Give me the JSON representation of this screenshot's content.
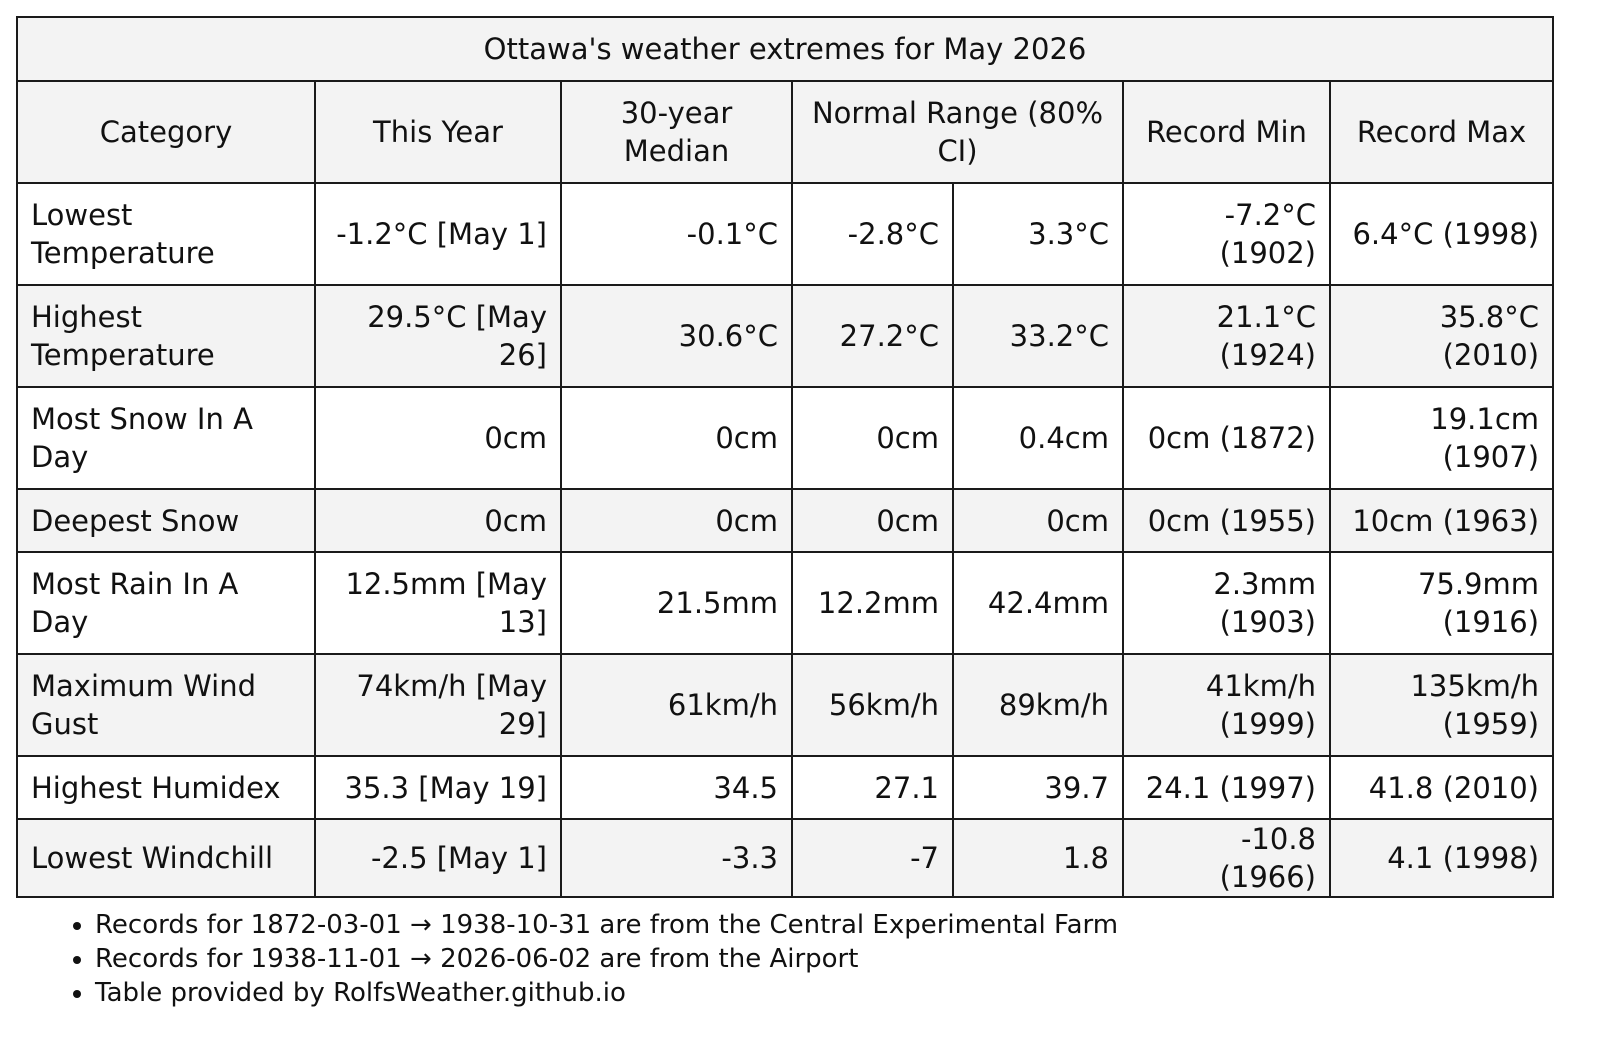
{
  "title": "Ottawa's weather extremes for May 2026",
  "headers": {
    "category": "Category",
    "this_year": "This Year",
    "median": "30-year Median",
    "normal_range": "Normal Range (80% CI)",
    "record_min": "Record Min",
    "record_max": "Record Max"
  },
  "rows": [
    {
      "category": "Lowest Temperature",
      "this_year": "-1.2°C [May 1]",
      "median": "-0.1°C",
      "range_low": "-2.8°C",
      "range_high": "3.3°C",
      "record_min": "-7.2°C (1902)",
      "record_max": "6.4°C (1998)"
    },
    {
      "category": "Highest Temperature",
      "this_year": "29.5°C [May 26]",
      "median": "30.6°C",
      "range_low": "27.2°C",
      "range_high": "33.2°C",
      "record_min": "21.1°C (1924)",
      "record_max": "35.8°C (2010)"
    },
    {
      "category": "Most Snow In A Day",
      "this_year": "0cm",
      "median": "0cm",
      "range_low": "0cm",
      "range_high": "0.4cm",
      "record_min": "0cm (1872)",
      "record_max": "19.1cm (1907)"
    },
    {
      "category": "Deepest Snow",
      "this_year": "0cm",
      "median": "0cm",
      "range_low": "0cm",
      "range_high": "0cm",
      "record_min": "0cm (1955)",
      "record_max": "10cm (1963)"
    },
    {
      "category": "Most Rain In A Day",
      "this_year": "12.5mm [May 13]",
      "median": "21.5mm",
      "range_low": "12.2mm",
      "range_high": "42.4mm",
      "record_min": "2.3mm (1903)",
      "record_max": "75.9mm (1916)"
    },
    {
      "category": "Maximum Wind Gust",
      "this_year": "74km/h [May 29]",
      "median": "61km/h",
      "range_low": "56km/h",
      "range_high": "89km/h",
      "record_min": "41km/h (1999)",
      "record_max": "135km/h (1959)"
    },
    {
      "category": "Highest Humidex",
      "this_year": "35.3 [May 19]",
      "median": "34.5",
      "range_low": "27.1",
      "range_high": "39.7",
      "record_min": "24.1 (1997)",
      "record_max": "41.8 (2010)"
    },
    {
      "category": "Lowest Windchill",
      "this_year": "-2.5 [May 1]",
      "median": "-3.3",
      "range_low": "-7",
      "range_high": "1.8",
      "record_min": "-10.8 (1966)",
      "record_max": "4.1 (1998)"
    }
  ],
  "notes": [
    "Records for 1872-03-01 → 1938-10-31 are from the Central Experimental Farm",
    "Records for 1938-11-01 → 2026-06-02 are from the Airport",
    "Table provided by RolfsWeather.github.io"
  ]
}
